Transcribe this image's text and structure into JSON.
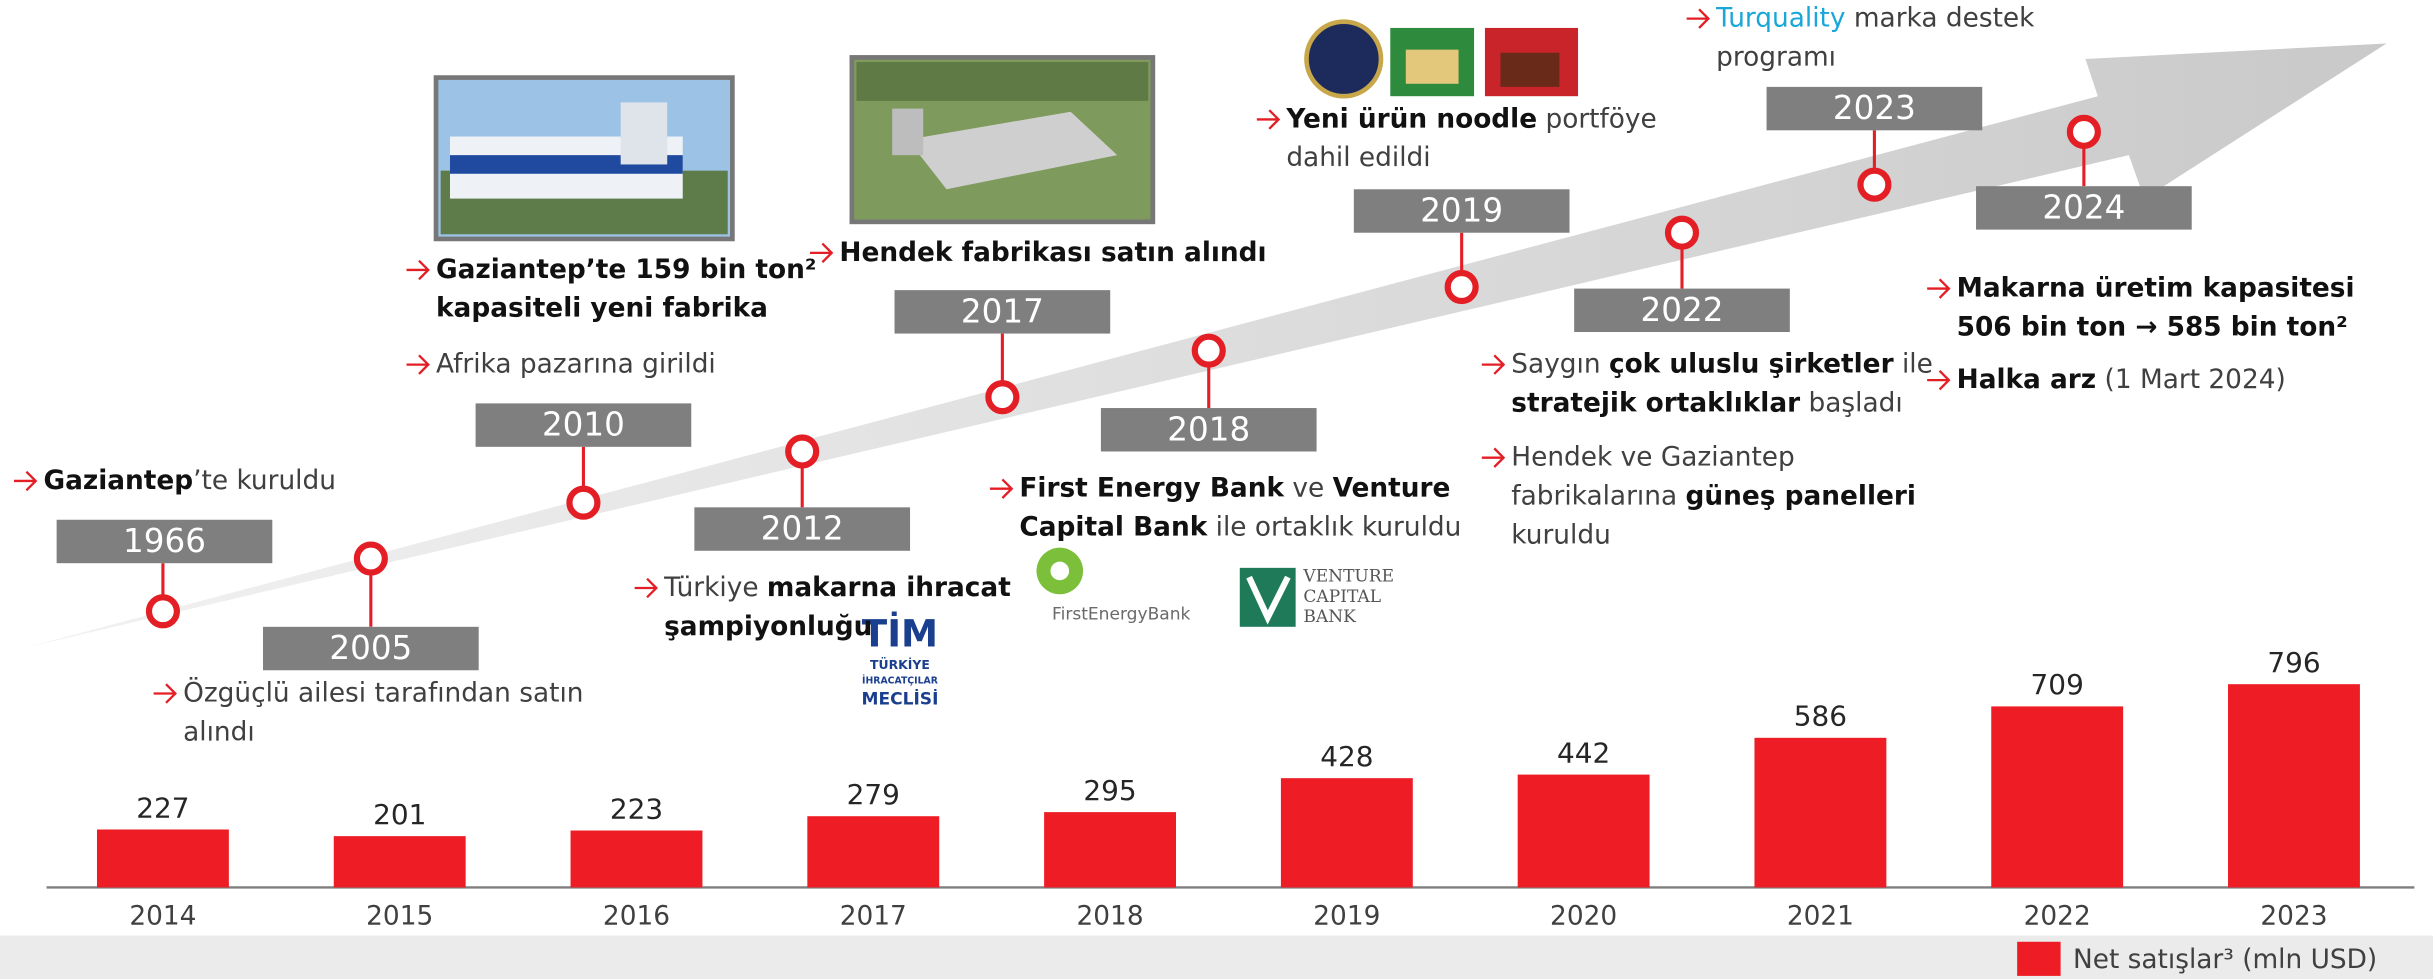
{
  "chart_data": {
    "type": "bar",
    "categories": [
      "2014",
      "2015",
      "2016",
      "2017",
      "2018",
      "2019",
      "2020",
      "2021",
      "2022",
      "2023"
    ],
    "series": [
      {
        "name": "Net satışlar³ (mln USD)",
        "color": "#ee1c25",
        "values": [
          227,
          201,
          223,
          279,
          295,
          428,
          442,
          586,
          709,
          796
        ]
      }
    ]
  },
  "timeline": {
    "events": [
      {
        "year": "1966",
        "bullets": [
          [
            [
              {
                "text": "Gaziantep",
                "bold": true
              },
              {
                "text": "’te kuruldu"
              }
            ]
          ]
        ]
      },
      {
        "year": "2005",
        "bullets": [
          [
            [
              {
                "text": "Özgüçlü ailesi tarafından satın"
              }
            ],
            [
              {
                "text": "alındı"
              }
            ]
          ]
        ]
      },
      {
        "year": "2010",
        "bullets": [
          [
            [
              {
                "text": "Gaziantep’te 159 bin ton²",
                "bold": true
              }
            ],
            [
              {
                "text": "kapasiteli yeni fabrika",
                "bold": true
              }
            ]
          ],
          [
            [
              {
                "text": "Afrika pazarına girildi"
              }
            ]
          ]
        ]
      },
      {
        "year": "2012",
        "bullets": [
          [
            [
              {
                "text": "Türkiye "
              },
              {
                "text": "makarna ihracat",
                "bold": true
              }
            ],
            [
              {
                "text": "şampiyonluğu",
                "bold": true
              }
            ]
          ]
        ]
      },
      {
        "year": "2017",
        "bullets": [
          [
            [
              {
                "text": "Hendek fabrikası satın alındı",
                "bold": true
              }
            ]
          ]
        ]
      },
      {
        "year": "2018",
        "bullets": [
          [
            [
              {
                "text": "First Energy Bank",
                "bold": true
              },
              {
                "text": " ve "
              },
              {
                "text": "Venture",
                "bold": true
              }
            ],
            [
              {
                "text": "Capital Bank",
                "bold": true
              },
              {
                "text": " ile ortaklık kuruldu"
              }
            ]
          ]
        ]
      },
      {
        "year": "2019",
        "bullets": [
          [
            [
              {
                "text": "Yeni ürün noodle",
                "bold": true
              },
              {
                "text": " portföye"
              }
            ],
            [
              {
                "text": "dahil edildi"
              }
            ]
          ]
        ]
      },
      {
        "year": "2022",
        "bullets": [
          [
            [
              {
                "text": "Saygın "
              },
              {
                "text": "çok uluslu şirketler",
                "bold": true
              },
              {
                "text": " ile"
              }
            ],
            [
              {
                "text": "stratejik ortaklıklar",
                "bold": true
              },
              {
                "text": " başladı"
              }
            ]
          ],
          [
            [
              {
                "text": "Hendek ve Gaziantep"
              }
            ],
            [
              {
                "text": "fabrikalarına "
              },
              {
                "text": "güneş panelleri",
                "bold": true
              }
            ],
            [
              {
                "text": "kuruldu"
              }
            ]
          ]
        ]
      },
      {
        "year": "2023",
        "bullets": [
          [
            [
              {
                "text": "Turquality",
                "color": "#1aa7d8"
              },
              {
                "text": " marka destek"
              }
            ],
            [
              {
                "text": "programı"
              }
            ]
          ]
        ]
      },
      {
        "year": "2024",
        "bullets": [
          [
            [
              {
                "text": "Makarna üretim kapasitesi",
                "bold": true
              }
            ],
            [
              {
                "text": "506 bin ton → 585 bin ton²",
                "bold": true
              }
            ]
          ],
          [
            [
              {
                "text": "Halka arz",
                "bold": true
              },
              {
                "text": " (1 Mart 2024)"
              }
            ]
          ]
        ]
      }
    ]
  },
  "logos": {
    "tim": [
      "TİM",
      "TÜRKİYE",
      "İHRACATÇILAR",
      "MECLİSİ"
    ],
    "first_energy": "FirstEnergyBank",
    "venture": [
      "VENTURE",
      "CAPITAL",
      "BANK"
    ]
  }
}
